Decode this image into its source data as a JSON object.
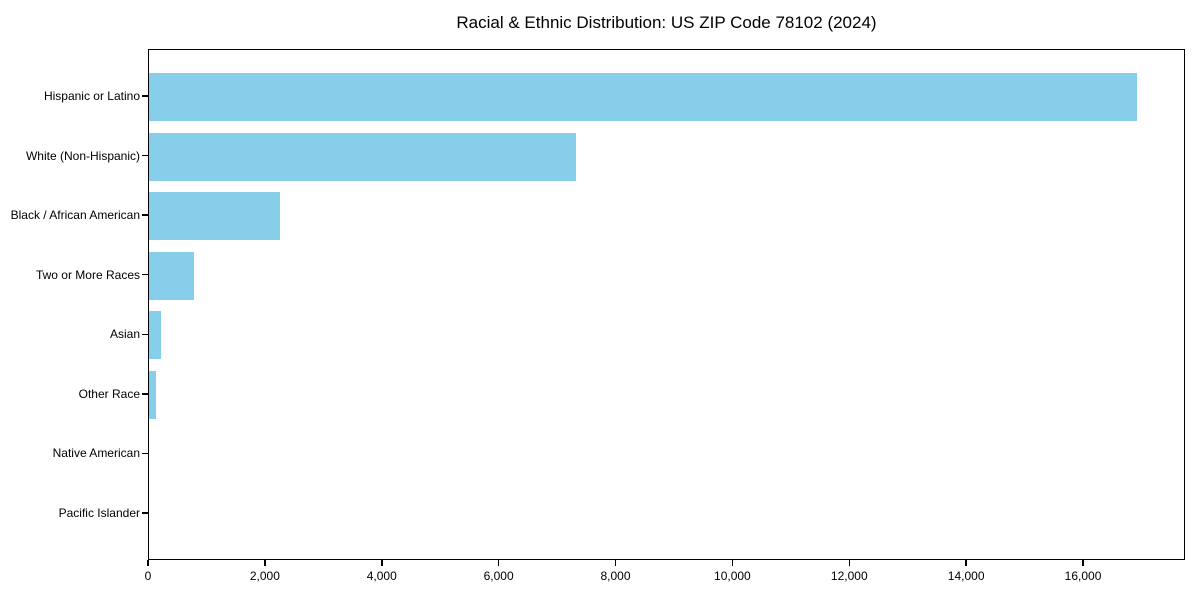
{
  "chart_data": {
    "type": "bar",
    "orientation": "horizontal",
    "title": "Racial & Ethnic Distribution: US ZIP Code 78102 (2024)",
    "categories": [
      "Hispanic or Latino",
      "White (Non-Hispanic)",
      "Black / African American",
      "Two or More Races",
      "Asian",
      "Other Race",
      "Native American",
      "Pacific Islander"
    ],
    "values": [
      16900,
      7300,
      2250,
      775,
      200,
      120,
      0,
      0
    ],
    "xlabel": "",
    "ylabel": "",
    "xlim": [
      0,
      17745
    ],
    "xticks": [
      0,
      2000,
      4000,
      6000,
      8000,
      10000,
      12000,
      14000,
      16000
    ],
    "xtick_labels": [
      "0",
      "2,000",
      "4,000",
      "6,000",
      "8,000",
      "10,000",
      "12,000",
      "14,000",
      "16,000"
    ],
    "bar_color": "#87CEEB",
    "text_color": "#000000",
    "grid": false,
    "legend": null
  }
}
